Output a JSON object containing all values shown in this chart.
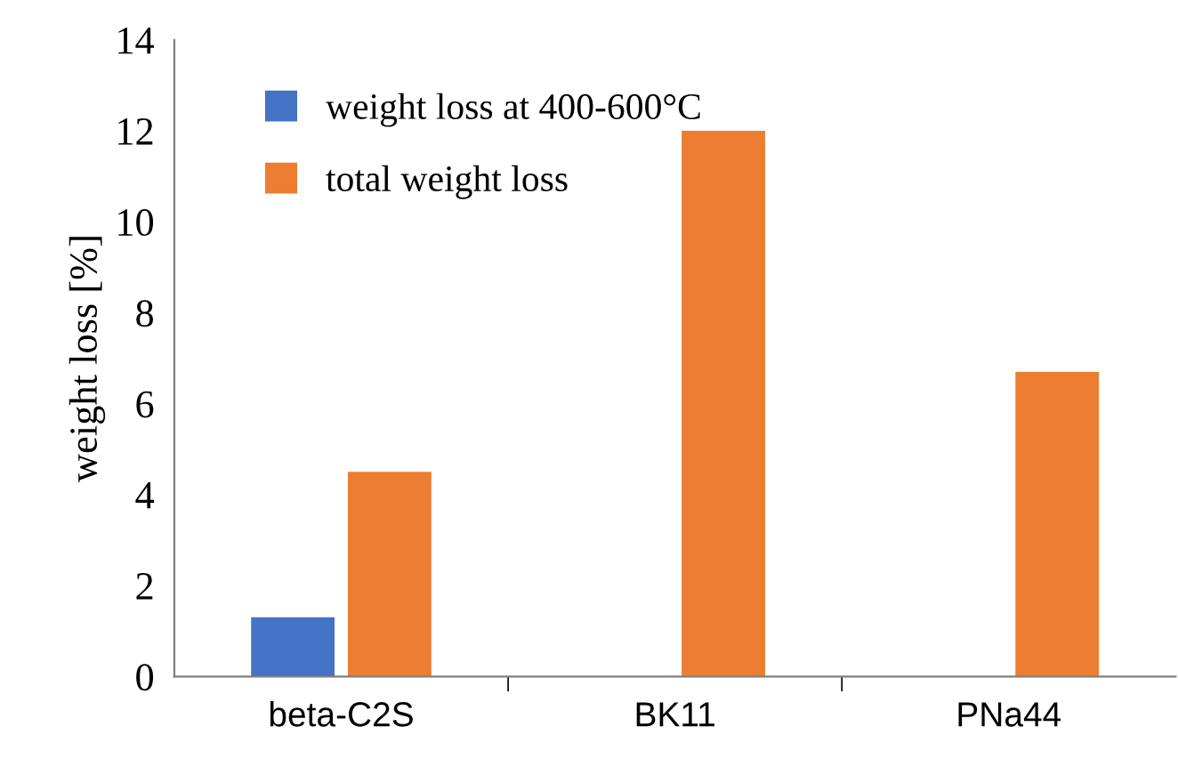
{
  "chart_data": {
    "type": "bar",
    "ylabel": "weight loss [%]",
    "categories": [
      "beta-C2S",
      "BK11",
      "PNa44"
    ],
    "series": [
      {
        "name": "weight loss at 400-600°C",
        "color": "#4472c4",
        "values": [
          1.3,
          null,
          null
        ]
      },
      {
        "name": "total weight loss",
        "color": "#ed7d31",
        "values": [
          4.5,
          12.0,
          6.7
        ]
      }
    ],
    "ylim": [
      0,
      14
    ],
    "yticks": [
      0,
      2,
      4,
      6,
      8,
      10,
      12,
      14
    ],
    "grid": false,
    "legend": "top left"
  }
}
